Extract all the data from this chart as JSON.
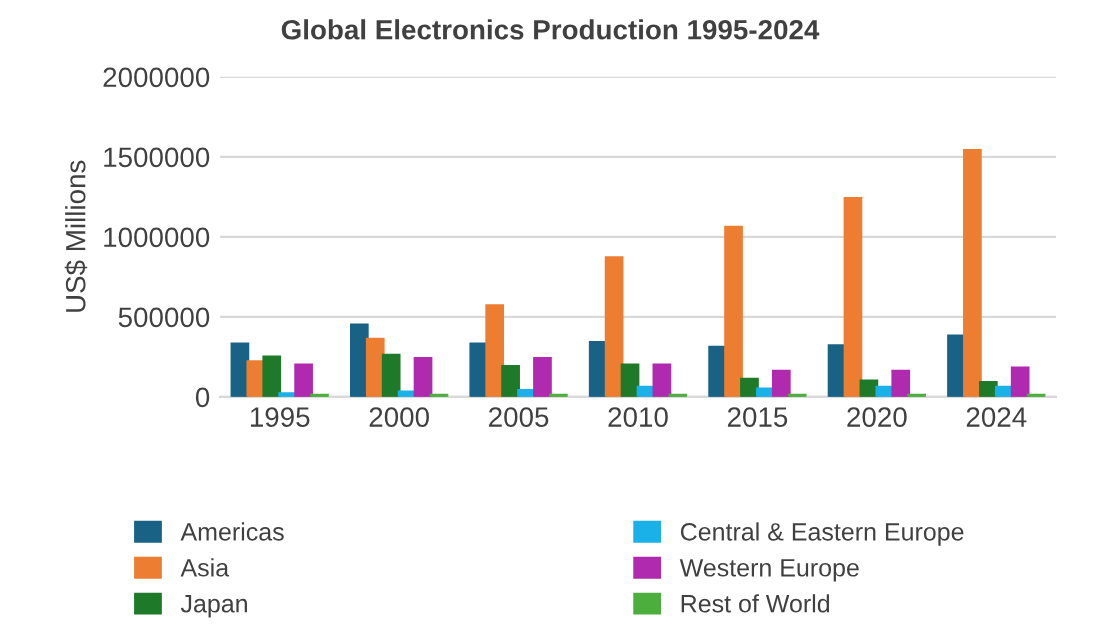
{
  "chart_data": {
    "type": "bar",
    "title": "Global Electronics Production 1995-2024",
    "ylabel": "US$ Millions",
    "categories": [
      "1995",
      "2000",
      "2005",
      "2010",
      "2015",
      "2020",
      "2024"
    ],
    "series": [
      {
        "name": "Americas",
        "color": "#1a6285",
        "values": [
          330000,
          450000,
          330000,
          340000,
          310000,
          320000,
          380000
        ]
      },
      {
        "name": "Asia",
        "color": "#ed7d31",
        "values": [
          220000,
          360000,
          570000,
          870000,
          1060000,
          1240000,
          1540000
        ]
      },
      {
        "name": "Japan",
        "color": "#1e7a28",
        "values": [
          250000,
          260000,
          190000,
          200000,
          110000,
          100000,
          90000
        ]
      },
      {
        "name": "Central & Eastern Europe",
        "color": "#1ab0e8",
        "values": [
          20000,
          30000,
          40000,
          60000,
          50000,
          60000,
          60000
        ]
      },
      {
        "name": "Western Europe",
        "color": "#b02ab0",
        "values": [
          200000,
          240000,
          240000,
          200000,
          160000,
          160000,
          180000
        ]
      },
      {
        "name": "Rest of World",
        "color": "#4cae3c",
        "values": [
          10000,
          10000,
          10000,
          10000,
          10000,
          10000,
          10000
        ]
      }
    ],
    "ylim": [
      0,
      2000000
    ],
    "yticks": [
      0,
      500000,
      1000000,
      1500000,
      2000000
    ],
    "grid": "y",
    "legend": "bottom"
  }
}
